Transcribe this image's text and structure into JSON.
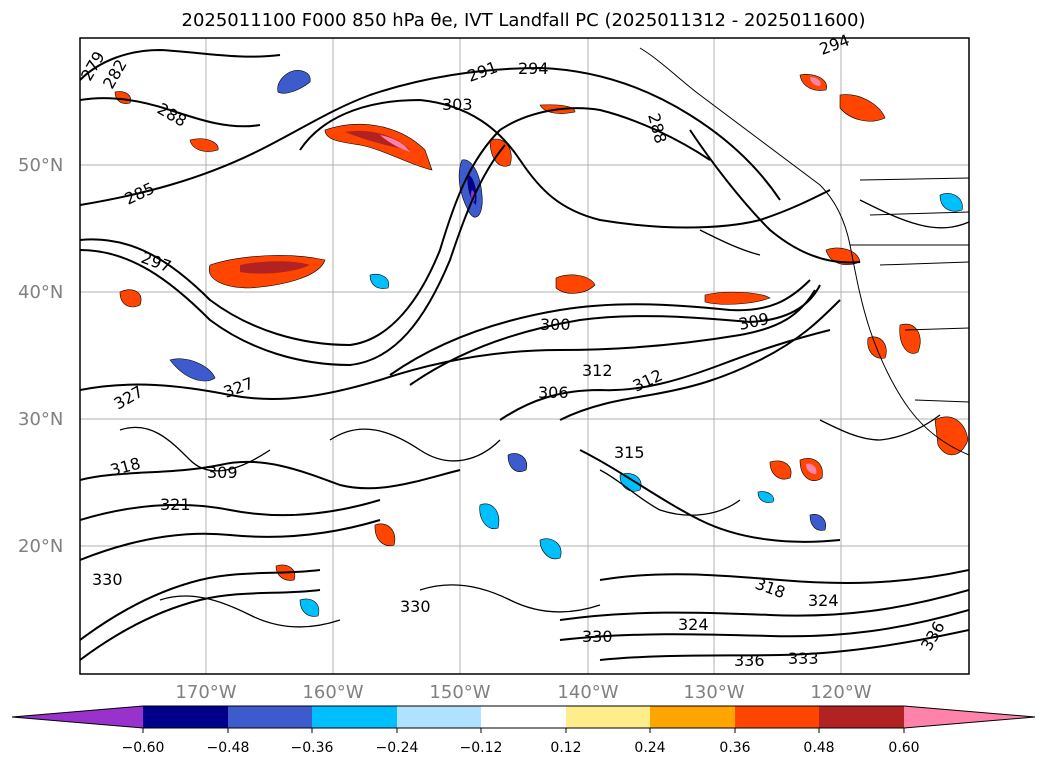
{
  "title": "2025011100 F000 850 hPa θe, IVT Landfall PC (2025011312 - 2025011600)",
  "map": {
    "lat_labels": [
      "50°N",
      "40°N",
      "30°N",
      "20°N"
    ],
    "lon_labels": [
      "170°W",
      "160°W",
      "150°W",
      "140°W",
      "130°W",
      "120°W"
    ],
    "contour_labels": [
      "279",
      "282",
      "288",
      "285",
      "297",
      "291",
      "294",
      "303",
      "288",
      "294",
      "300",
      "309",
      "312",
      "306",
      "312",
      "315",
      "318",
      "321",
      "324",
      "327",
      "330",
      "336",
      "333",
      "318",
      "309",
      "330",
      "324",
      "330",
      "336",
      "327"
    ]
  },
  "colorbar": {
    "ticks": [
      "−0.60",
      "−0.48",
      "−0.36",
      "−0.24",
      "−0.12",
      "0.12",
      "0.24",
      "0.36",
      "0.48",
      "0.60"
    ],
    "colors": [
      "#9932cc",
      "#00008b",
      "#3d5bcc",
      "#00bfff",
      "#b0e2ff",
      "#ffffff",
      "#ffec8b",
      "#ffa500",
      "#ff4500",
      "#b22222",
      "#ff82ab"
    ]
  }
}
